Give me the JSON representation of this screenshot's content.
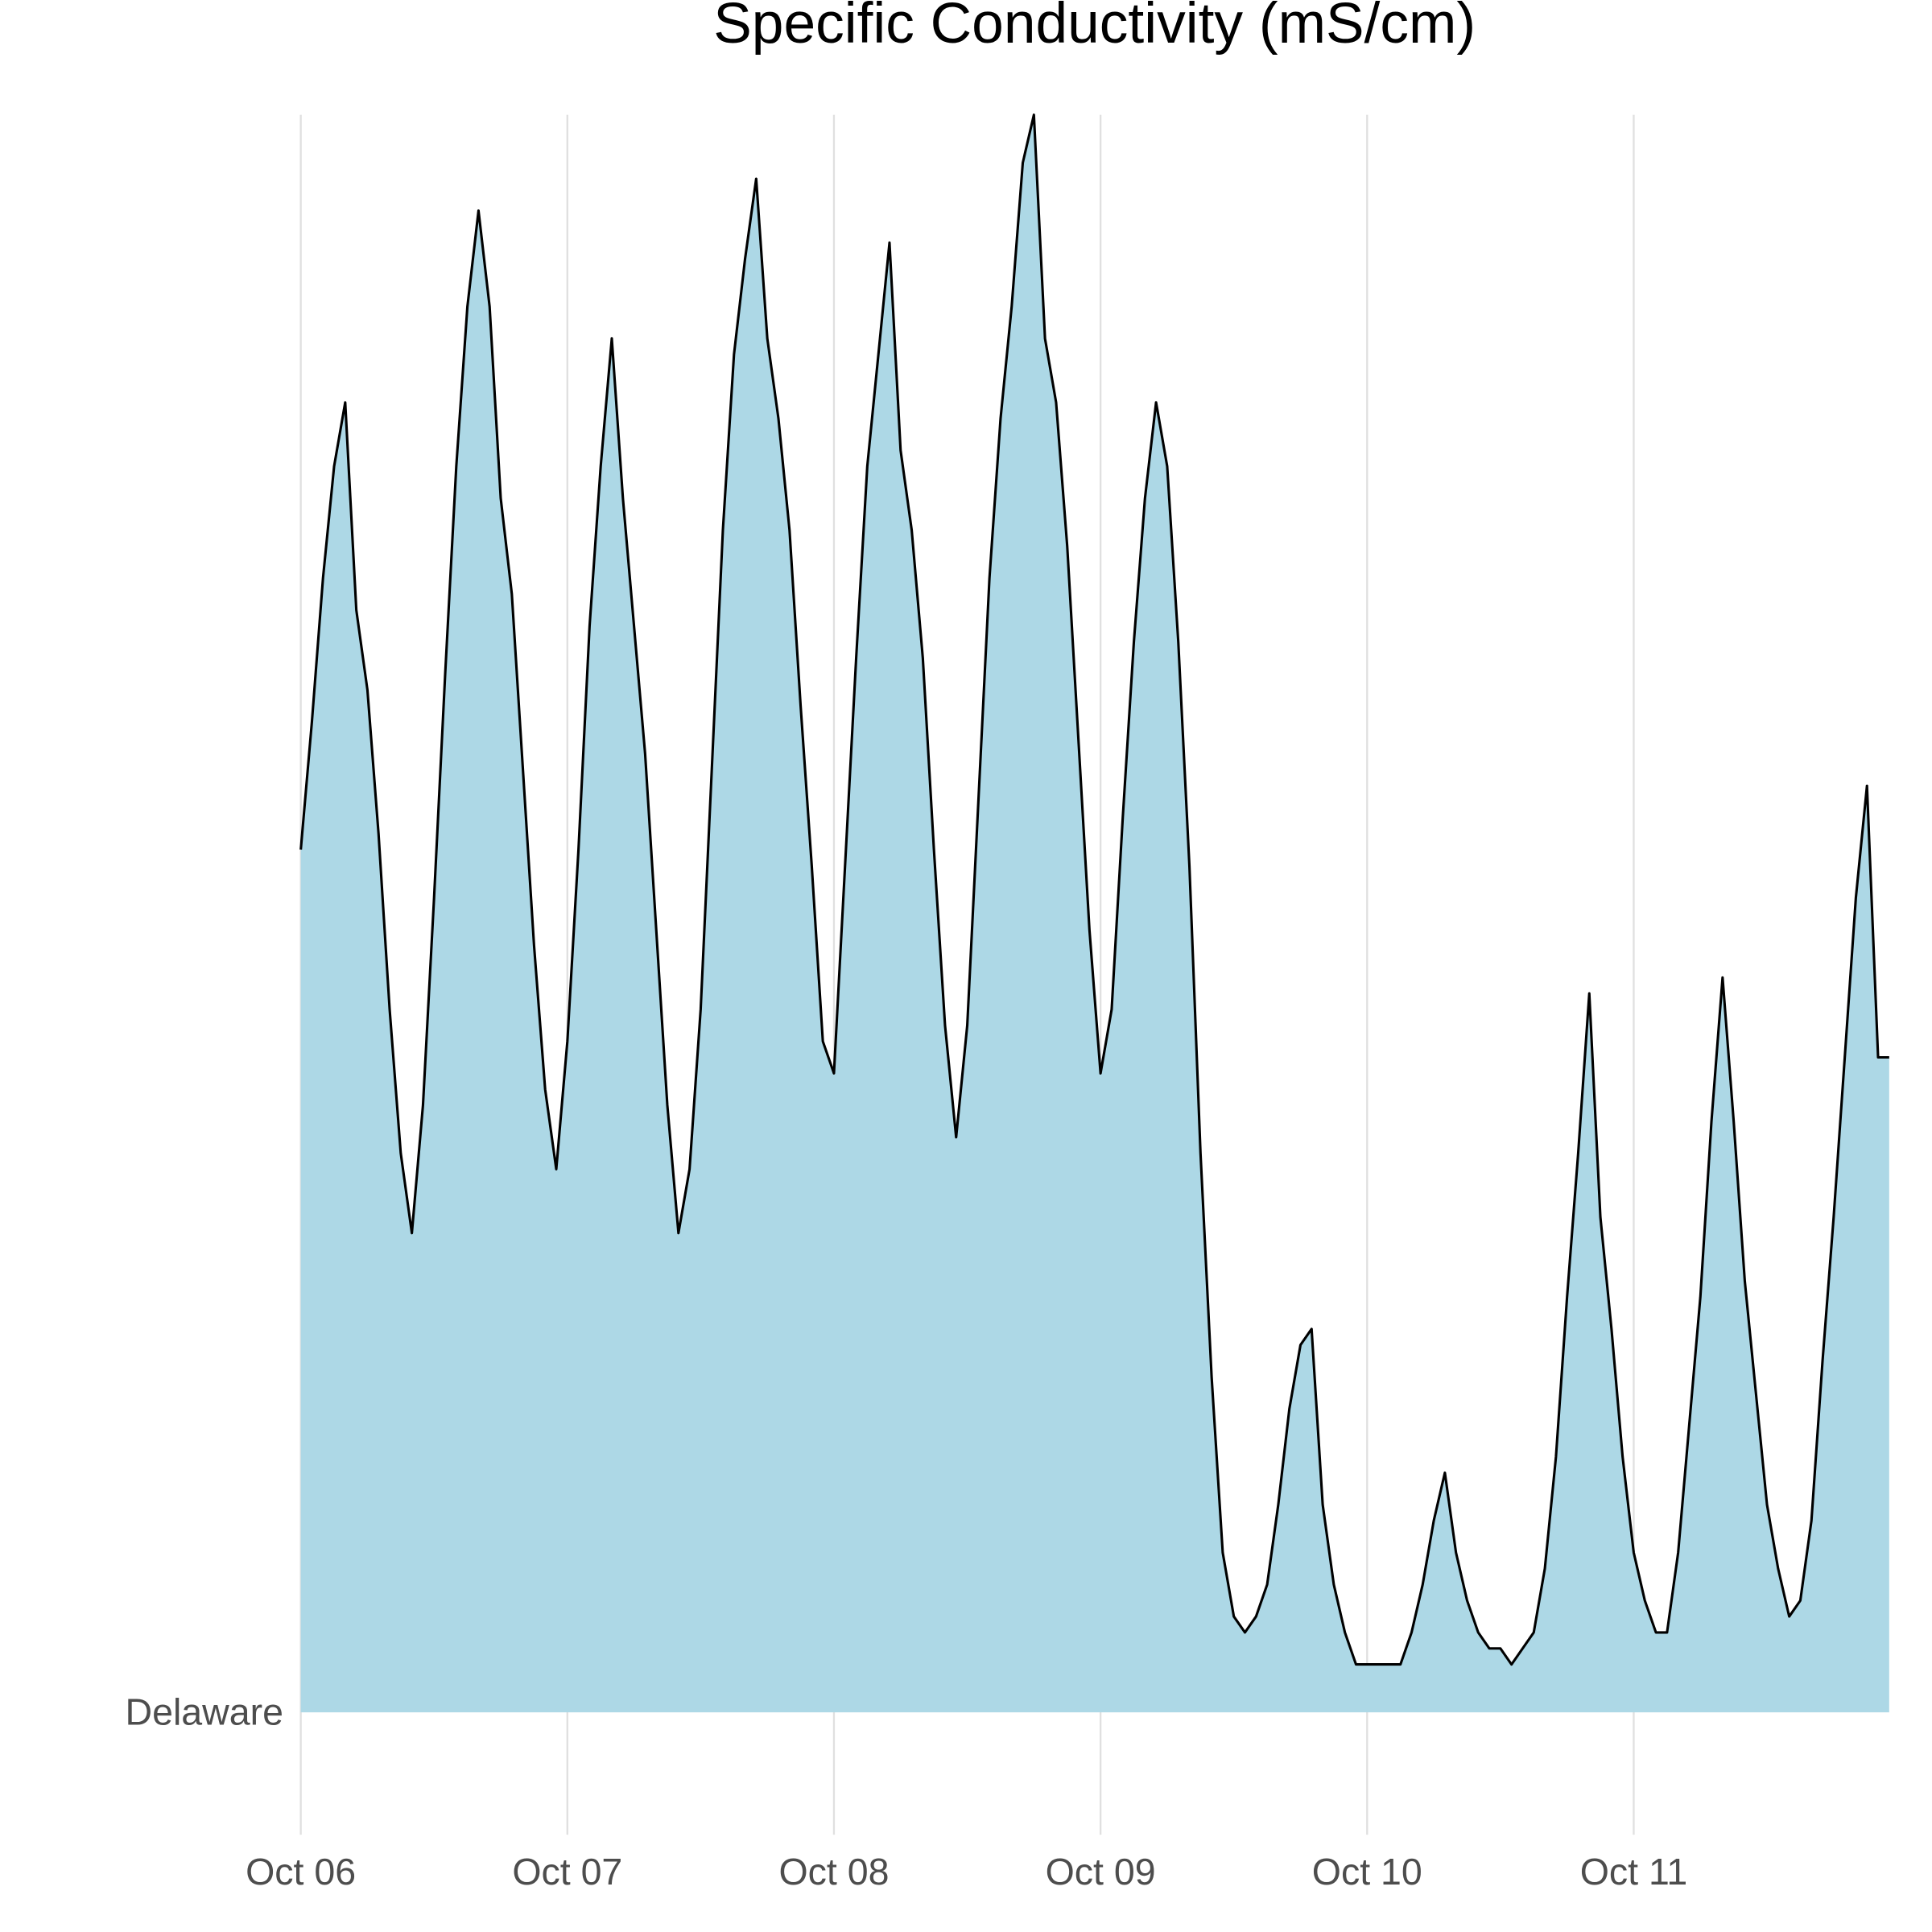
{
  "chart_data": {
    "type": "area",
    "title": "Specific Conductivity (mS/cm)",
    "x": [
      0,
      1,
      2,
      3,
      4,
      5,
      6,
      7,
      8,
      9,
      10,
      11,
      12,
      13,
      14,
      15,
      16,
      17,
      18,
      19,
      20,
      21,
      22,
      23,
      24,
      25,
      26,
      27,
      28,
      29,
      30,
      31,
      32,
      33,
      34,
      35,
      36,
      37,
      38,
      39,
      40,
      41,
      42,
      43,
      44,
      45,
      46,
      47,
      48,
      49,
      50,
      51,
      52,
      53,
      54,
      55,
      56,
      57,
      58,
      59,
      60,
      61,
      62,
      63,
      64,
      65,
      66,
      67,
      68,
      69,
      70,
      71,
      72,
      73,
      74,
      75,
      76,
      77,
      78,
      79,
      80,
      81,
      82,
      83,
      84,
      85,
      86,
      87,
      88,
      89,
      90,
      91,
      92,
      93,
      94,
      95,
      96,
      97,
      98,
      99,
      100,
      101,
      102,
      103,
      104,
      105,
      106,
      107,
      108,
      109,
      110,
      111,
      112,
      113,
      114,
      115,
      116,
      117,
      118,
      119,
      120,
      121,
      122,
      123,
      124,
      125,
      126,
      127,
      128,
      129,
      130,
      131,
      132,
      133,
      134,
      135,
      136,
      137,
      138,
      139,
      140,
      141,
      142,
      143
    ],
    "series": [
      {
        "name": "Delaware",
        "color": "#add8e6",
        "line_color": "#000000",
        "values": [
          0.54,
          0.62,
          0.71,
          0.78,
          0.82,
          0.69,
          0.64,
          0.55,
          0.44,
          0.35,
          0.3,
          0.38,
          0.51,
          0.65,
          0.78,
          0.88,
          0.94,
          0.88,
          0.76,
          0.7,
          0.59,
          0.48,
          0.39,
          0.34,
          0.42,
          0.54,
          0.68,
          0.78,
          0.86,
          0.76,
          0.68,
          0.6,
          0.49,
          0.38,
          0.3,
          0.34,
          0.44,
          0.59,
          0.74,
          0.85,
          0.91,
          0.96,
          0.86,
          0.81,
          0.74,
          0.63,
          0.53,
          0.42,
          0.4,
          0.53,
          0.66,
          0.78,
          0.85,
          0.92,
          0.79,
          0.74,
          0.66,
          0.54,
          0.43,
          0.36,
          0.43,
          0.57,
          0.71,
          0.81,
          0.88,
          0.97,
          1.0,
          0.86,
          0.82,
          0.73,
          0.61,
          0.49,
          0.4,
          0.44,
          0.56,
          0.67,
          0.76,
          0.82,
          0.78,
          0.67,
          0.53,
          0.35,
          0.21,
          0.1,
          0.06,
          0.05,
          0.06,
          0.08,
          0.13,
          0.19,
          0.23,
          0.24,
          0.13,
          0.08,
          0.05,
          0.03,
          0.03,
          0.03,
          0.03,
          0.03,
          0.05,
          0.08,
          0.12,
          0.15,
          0.1,
          0.07,
          0.05,
          0.04,
          0.04,
          0.03,
          0.04,
          0.05,
          0.09,
          0.16,
          0.26,
          0.35,
          0.45,
          0.31,
          0.24,
          0.16,
          0.1,
          0.07,
          0.05,
          0.05,
          0.1,
          0.18,
          0.26,
          0.37,
          0.46,
          0.37,
          0.27,
          0.2,
          0.13,
          0.09,
          0.06,
          0.07,
          0.12,
          0.22,
          0.31,
          0.41,
          0.51,
          0.58,
          0.41,
          0.41
        ]
      }
    ],
    "xlim": [
      0,
      143
    ],
    "xticks": [
      {
        "value": 0,
        "label": "Oct 06"
      },
      {
        "value": 24,
        "label": "Oct 07"
      },
      {
        "value": 48,
        "label": "Oct 08"
      },
      {
        "value": 72,
        "label": "Oct 09"
      },
      {
        "value": 96,
        "label": "Oct 10"
      },
      {
        "value": 120,
        "label": "Oct 11"
      }
    ],
    "grid": true
  }
}
